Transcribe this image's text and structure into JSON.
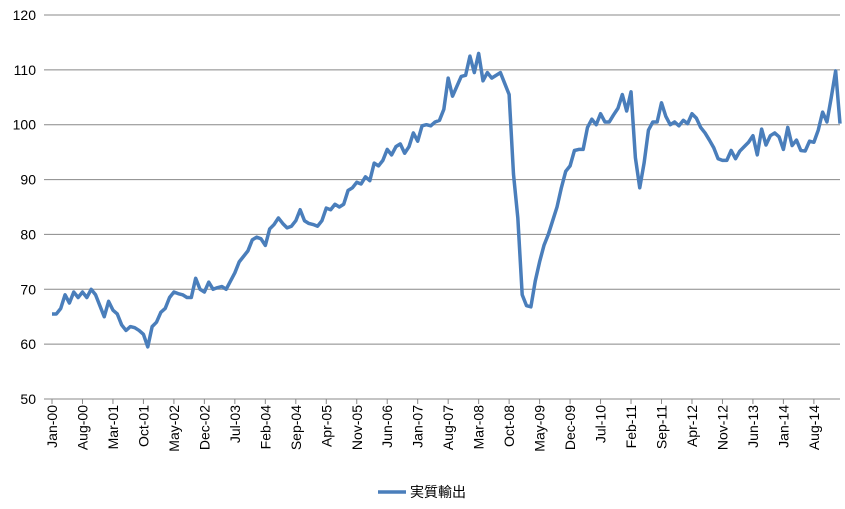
{
  "chart_data": {
    "type": "line",
    "categories": [
      "Jan-00",
      null,
      null,
      null,
      null,
      null,
      null,
      "Aug-00",
      null,
      null,
      null,
      null,
      null,
      null,
      "Mar-01",
      null,
      null,
      null,
      null,
      null,
      null,
      "Oct-01",
      null,
      null,
      null,
      null,
      null,
      null,
      "May-02",
      null,
      null,
      null,
      null,
      null,
      null,
      "Dec-02",
      null,
      null,
      null,
      null,
      null,
      null,
      "Jul-03",
      null,
      null,
      null,
      null,
      null,
      null,
      "Feb-04",
      null,
      null,
      null,
      null,
      null,
      null,
      "Sep-04",
      null,
      null,
      null,
      null,
      null,
      null,
      "Apr-05",
      null,
      null,
      null,
      null,
      null,
      null,
      "Nov-05",
      null,
      null,
      null,
      null,
      null,
      null,
      "Jun-06",
      null,
      null,
      null,
      null,
      null,
      null,
      "Jan-07",
      null,
      null,
      null,
      null,
      null,
      null,
      "Aug-07",
      null,
      null,
      null,
      null,
      null,
      null,
      "Mar-08",
      null,
      null,
      null,
      null,
      null,
      null,
      "Oct-08",
      null,
      null,
      null,
      null,
      null,
      null,
      "May-09",
      null,
      null,
      null,
      null,
      null,
      null,
      "Dec-09",
      null,
      null,
      null,
      null,
      null,
      null,
      "Jul-10",
      null,
      null,
      null,
      null,
      null,
      null,
      "Feb-11",
      null,
      null,
      null,
      null,
      null,
      null,
      "Sep-11",
      null,
      null,
      null,
      null,
      null,
      null,
      "Apr-12",
      null,
      null,
      null,
      null,
      null,
      null,
      "Nov-12",
      null,
      null,
      null,
      null,
      null,
      null,
      "Jun-13",
      null,
      null,
      null,
      null,
      null,
      null,
      "Jan-14",
      null,
      null,
      null,
      null,
      null,
      null,
      "Aug-14",
      null,
      null,
      null,
      null,
      null,
      null
    ],
    "series": [
      {
        "name": "実質輸出",
        "color": "#4a7ebb",
        "values": [
          65.5,
          65.5,
          66.5,
          69,
          67.5,
          69.5,
          68.5,
          69.5,
          68.5,
          70,
          69,
          67,
          65,
          67.8,
          66.2,
          65.5,
          63.5,
          62.5,
          63.2,
          63,
          62.5,
          61.8,
          59.5,
          63.2,
          64,
          65.8,
          66.5,
          68.5,
          69.5,
          69.2,
          69,
          68.5,
          68.5,
          72,
          70,
          69.5,
          71.3,
          70,
          70.3,
          70.5,
          70,
          71.5,
          73,
          75,
          76,
          77,
          79,
          79.5,
          79.2,
          78,
          81,
          81.8,
          83,
          82,
          81.2,
          81.5,
          82.5,
          84.5,
          82.5,
          82,
          81.8,
          81.5,
          82.5,
          84.8,
          84.5,
          85.5,
          85,
          85.5,
          88,
          88.5,
          89.5,
          89.2,
          90.5,
          89.8,
          93,
          92.5,
          93.5,
          95.5,
          94.5,
          96,
          96.5,
          94.8,
          96,
          98.5,
          97,
          99.8,
          100,
          99.8,
          100.5,
          100.8,
          102.8,
          108.5,
          105.2,
          107,
          108.8,
          109,
          112.5,
          109.5,
          113,
          108,
          109.5,
          108.5,
          109,
          109.5,
          107.5,
          105.5,
          91,
          83,
          69,
          67,
          66.8,
          71.5,
          75,
          78,
          80,
          82.5,
          85,
          88.5,
          91.5,
          92.5,
          95.3,
          95.5,
          95.5,
          99.5,
          101,
          100,
          102,
          100.5,
          100.5,
          101.8,
          103,
          105.5,
          102.5,
          106,
          94,
          88.5,
          93,
          99,
          100.5,
          100.5,
          104,
          101.5,
          100,
          100.5,
          99.8,
          100.8,
          100.2,
          102,
          101.2,
          99.5,
          98.5,
          97.2,
          95.8,
          93.8,
          93.5,
          93.5,
          95.3,
          93.8,
          95.2,
          96,
          96.8,
          98,
          94.5,
          99.2,
          96.3,
          98,
          98.5,
          97.8,
          95.5,
          99.5,
          96.2,
          97.2,
          95.3,
          95.2,
          97,
          96.8,
          99,
          102.3,
          100.5,
          105,
          109.8,
          100.2
        ]
      }
    ],
    "ylim": [
      50,
      120
    ],
    "yticks": [
      50,
      60,
      70,
      80,
      90,
      100,
      110,
      120
    ],
    "grid": true,
    "legend": "bottom"
  }
}
